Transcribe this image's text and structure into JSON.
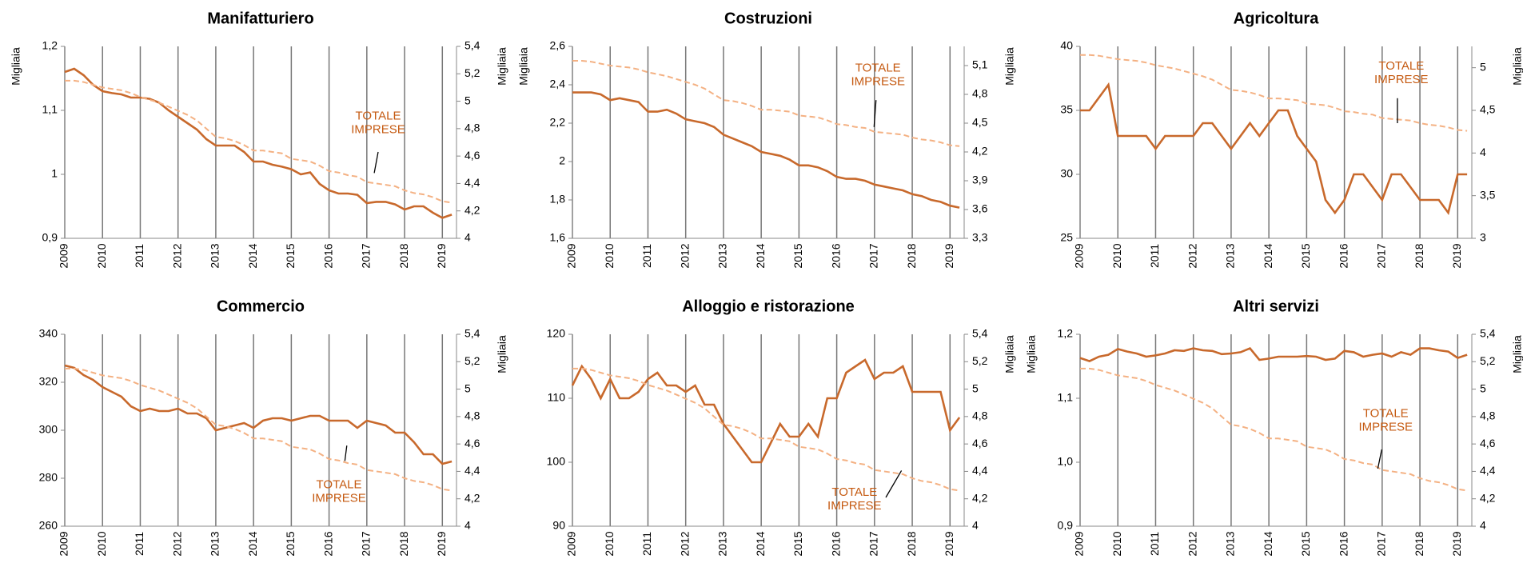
{
  "chart_data": [
    {
      "type": "line",
      "title": "Manifatturiero",
      "y_label": "Migliaia",
      "y2_label": "Migliaia",
      "categories": [
        "2009",
        null,
        null,
        null,
        "2010",
        null,
        null,
        null,
        "2011",
        null,
        null,
        null,
        "2012",
        null,
        null,
        null,
        "2013",
        null,
        null,
        null,
        "2014",
        null,
        null,
        null,
        "2015",
        null,
        null,
        null,
        "2016",
        null,
        null,
        null,
        "2017",
        null,
        null,
        null,
        "2018",
        null,
        null,
        null,
        "2019",
        null
      ],
      "ylim": [
        0.9,
        1.2
      ],
      "yticks": [
        {
          "value": 0.9,
          "label": "0,9"
        },
        1,
        {
          "value": 1.1,
          "label": "1,1"
        },
        {
          "value": 1.2,
          "label": "1,2"
        }
      ],
      "y2lim": [
        4,
        5.4
      ],
      "y2ticks": [
        4,
        {
          "value": 4.2,
          "label": "4,2"
        },
        {
          "value": 4.4,
          "label": "4,4"
        },
        {
          "value": 4.6,
          "label": "4,6"
        },
        {
          "value": 4.8,
          "label": "4,8"
        },
        5,
        {
          "value": 5.2,
          "label": "5,2"
        },
        {
          "value": 5.4,
          "label": "5,4"
        }
      ],
      "annotation": [
        "TOTALE",
        "IMPRESE"
      ],
      "series": [
        {
          "color": "#c8692c",
          "axis": "y",
          "values": [
            1.16,
            1.165,
            1.155,
            1.14,
            1.13,
            1.127,
            1.125,
            1.12,
            1.12,
            1.118,
            1.112,
            1.1,
            1.09,
            1.08,
            1.07,
            1.055,
            1.045,
            1.045,
            1.045,
            1.035,
            1.02,
            1.02,
            1.015,
            1.012,
            1.008,
            1.0,
            1.003,
            0.985,
            0.975,
            0.97,
            0.97,
            0.968,
            0.955,
            0.957,
            0.957,
            0.953,
            0.945,
            0.95,
            0.95,
            0.94,
            0.932,
            0.937
          ]
        },
        {
          "color": "#f4b183",
          "axis": "y2",
          "dashed": true,
          "values": [
            5.15,
            5.15,
            5.14,
            5.12,
            5.1,
            5.09,
            5.08,
            5.06,
            5.03,
            5.01,
            4.99,
            4.96,
            4.93,
            4.9,
            4.86,
            4.8,
            4.74,
            4.73,
            4.71,
            4.68,
            4.64,
            4.64,
            4.63,
            4.62,
            4.58,
            4.57,
            4.56,
            4.53,
            4.49,
            4.48,
            4.46,
            4.45,
            4.41,
            4.4,
            4.39,
            4.38,
            4.35,
            4.33,
            4.32,
            4.3,
            4.27,
            4.26
          ]
        }
      ]
    },
    {
      "type": "line",
      "title": "Costruzioni",
      "y_label": "Migliaia",
      "y2_label": "Migliaia",
      "categories": [
        "2009",
        null,
        null,
        null,
        "2010",
        null,
        null,
        null,
        "2011",
        null,
        null,
        null,
        "2012",
        null,
        null,
        null,
        "2013",
        null,
        null,
        null,
        "2014",
        null,
        null,
        null,
        "2015",
        null,
        null,
        null,
        "2016",
        null,
        null,
        null,
        "2017",
        null,
        null,
        null,
        "2018",
        null,
        null,
        null,
        "2019",
        null
      ],
      "ylim": [
        1.6,
        2.6
      ],
      "yticks": [
        {
          "value": 1.6,
          "label": "1,6"
        },
        {
          "value": 1.8,
          "label": "1,8"
        },
        2,
        {
          "value": 2.2,
          "label": "2,2"
        },
        {
          "value": 2.4,
          "label": "2,4"
        },
        {
          "value": 2.6,
          "label": "2,6"
        }
      ],
      "y2lim": [
        3.3,
        5.3
      ],
      "y2ticks": [
        {
          "value": 3.3,
          "label": "3,3"
        },
        {
          "value": 3.6,
          "label": "3,6"
        },
        {
          "value": 3.9,
          "label": "3,9"
        },
        {
          "value": 4.2,
          "label": "4,2"
        },
        {
          "value": 4.5,
          "label": "4,5"
        },
        {
          "value": 4.8,
          "label": "4,8"
        },
        {
          "value": 5.1,
          "label": "5,1"
        }
      ],
      "annotation": [
        "TOTALE",
        "IMPRESE"
      ],
      "series": [
        {
          "color": "#c8692c",
          "axis": "y",
          "values": [
            2.36,
            2.36,
            2.36,
            2.35,
            2.32,
            2.33,
            2.32,
            2.31,
            2.26,
            2.26,
            2.27,
            2.25,
            2.22,
            2.21,
            2.2,
            2.18,
            2.14,
            2.12,
            2.1,
            2.08,
            2.05,
            2.04,
            2.03,
            2.01,
            1.98,
            1.98,
            1.97,
            1.95,
            1.92,
            1.91,
            1.91,
            1.9,
            1.88,
            1.87,
            1.86,
            1.85,
            1.83,
            1.82,
            1.8,
            1.79,
            1.77,
            1.76
          ]
        },
        {
          "color": "#f4b183",
          "axis": "y2",
          "dashed": true,
          "values": [
            5.15,
            5.15,
            5.14,
            5.12,
            5.1,
            5.09,
            5.08,
            5.06,
            5.03,
            5.01,
            4.99,
            4.96,
            4.93,
            4.9,
            4.86,
            4.8,
            4.74,
            4.73,
            4.71,
            4.68,
            4.64,
            4.64,
            4.63,
            4.62,
            4.58,
            4.57,
            4.56,
            4.53,
            4.49,
            4.48,
            4.46,
            4.45,
            4.41,
            4.4,
            4.39,
            4.38,
            4.35,
            4.33,
            4.32,
            4.3,
            4.27,
            4.26
          ]
        }
      ]
    },
    {
      "type": "line",
      "title": "Agricoltura",
      "y2_label": "Migliaia",
      "categories": [
        "2009",
        null,
        null,
        null,
        "2010",
        null,
        null,
        null,
        "2011",
        null,
        null,
        null,
        "2012",
        null,
        null,
        null,
        "2013",
        null,
        null,
        null,
        "2014",
        null,
        null,
        null,
        "2015",
        null,
        null,
        null,
        "2016",
        null,
        null,
        null,
        "2017",
        null,
        null,
        null,
        "2018",
        null,
        null,
        null,
        "2019",
        null
      ],
      "ylim": [
        25,
        40
      ],
      "yticks": [
        25,
        30,
        35,
        40
      ],
      "y2lim": [
        3,
        5.25
      ],
      "y2ticks": [
        3,
        {
          "value": 3.5,
          "label": "3,5"
        },
        4,
        {
          "value": 4.5,
          "label": "4,5"
        },
        5
      ],
      "annotation": [
        "TOTALE",
        "IMPRESE"
      ],
      "series": [
        {
          "color": "#c8692c",
          "axis": "y",
          "values": [
            35,
            35,
            36,
            37,
            33,
            33,
            33,
            33,
            32,
            33,
            33,
            33,
            33,
            34,
            34,
            33,
            32,
            33,
            34,
            33,
            34,
            35,
            35,
            33,
            32,
            31,
            28,
            27,
            28,
            30,
            30,
            29,
            28,
            30,
            30,
            29,
            28,
            28,
            28,
            27,
            30,
            30
          ]
        },
        {
          "color": "#f4b183",
          "axis": "y2",
          "dashed": true,
          "values": [
            5.15,
            5.15,
            5.14,
            5.12,
            5.1,
            5.09,
            5.08,
            5.06,
            5.03,
            5.01,
            4.99,
            4.96,
            4.93,
            4.9,
            4.86,
            4.8,
            4.74,
            4.73,
            4.71,
            4.68,
            4.64,
            4.64,
            4.63,
            4.62,
            4.58,
            4.57,
            4.56,
            4.53,
            4.49,
            4.48,
            4.46,
            4.45,
            4.41,
            4.4,
            4.39,
            4.38,
            4.35,
            4.33,
            4.32,
            4.3,
            4.27,
            4.26
          ]
        }
      ]
    },
    {
      "type": "line",
      "title": "Commercio",
      "y2_label": "Migliaia",
      "categories": [
        "2009",
        null,
        null,
        null,
        "2010",
        null,
        null,
        null,
        "2011",
        null,
        null,
        null,
        "2012",
        null,
        null,
        null,
        "2013",
        null,
        null,
        null,
        "2014",
        null,
        null,
        null,
        "2015",
        null,
        null,
        null,
        "2016",
        null,
        null,
        null,
        "2017",
        null,
        null,
        null,
        "2018",
        null,
        null,
        null,
        "2019",
        null
      ],
      "ylim": [
        260,
        340
      ],
      "yticks": [
        260,
        280,
        300,
        320,
        340
      ],
      "y2lim": [
        4,
        5.4
      ],
      "y2ticks": [
        4,
        {
          "value": 4.2,
          "label": "4,2"
        },
        {
          "value": 4.4,
          "label": "4,4"
        },
        {
          "value": 4.6,
          "label": "4,6"
        },
        {
          "value": 4.8,
          "label": "4,8"
        },
        5,
        {
          "value": 5.2,
          "label": "5,2"
        },
        {
          "value": 5.4,
          "label": "5,4"
        }
      ],
      "annotation": [
        "TOTALE",
        "IMPRESE"
      ],
      "series": [
        {
          "color": "#c8692c",
          "axis": "y",
          "values": [
            327,
            326,
            323,
            321,
            318,
            316,
            314,
            310,
            308,
            309,
            308,
            308,
            309,
            307,
            307,
            305,
            300,
            301,
            302,
            303,
            301,
            304,
            305,
            305,
            304,
            305,
            306,
            306,
            304,
            304,
            304,
            301,
            304,
            303,
            302,
            299,
            299,
            295,
            290,
            290,
            286,
            287
          ]
        },
        {
          "color": "#f4b183",
          "axis": "y2",
          "dashed": true,
          "values": [
            5.15,
            5.15,
            5.14,
            5.12,
            5.1,
            5.09,
            5.08,
            5.06,
            5.03,
            5.01,
            4.99,
            4.96,
            4.93,
            4.9,
            4.86,
            4.8,
            4.74,
            4.73,
            4.71,
            4.68,
            4.64,
            4.64,
            4.63,
            4.62,
            4.58,
            4.57,
            4.56,
            4.53,
            4.49,
            4.48,
            4.46,
            4.45,
            4.41,
            4.4,
            4.39,
            4.38,
            4.35,
            4.33,
            4.32,
            4.3,
            4.27,
            4.26
          ]
        }
      ]
    },
    {
      "type": "line",
      "title": "Alloggio e ristorazione",
      "y2_label": "Migliaia",
      "categories": [
        "2009",
        null,
        null,
        null,
        "2010",
        null,
        null,
        null,
        "2011",
        null,
        null,
        null,
        "2012",
        null,
        null,
        null,
        "2013",
        null,
        null,
        null,
        "2014",
        null,
        null,
        null,
        "2015",
        null,
        null,
        null,
        "2016",
        null,
        null,
        null,
        "2017",
        null,
        null,
        null,
        "2018",
        null,
        null,
        null,
        "2019",
        null
      ],
      "ylim": [
        90,
        120
      ],
      "yticks": [
        90,
        100,
        110,
        120
      ],
      "y2lim": [
        4,
        5.4
      ],
      "y2ticks": [
        4,
        {
          "value": 4.2,
          "label": "4,2"
        },
        {
          "value": 4.4,
          "label": "4,4"
        },
        {
          "value": 4.6,
          "label": "4,6"
        },
        {
          "value": 4.8,
          "label": "4,8"
        },
        5,
        {
          "value": 5.2,
          "label": "5,2"
        },
        {
          "value": 5.4,
          "label": "5,4"
        }
      ],
      "annotation": [
        "TOTALE",
        "IMPRESE"
      ],
      "series": [
        {
          "color": "#c8692c",
          "axis": "y",
          "values": [
            112,
            115,
            113,
            110,
            113,
            110,
            110,
            111,
            113,
            114,
            112,
            112,
            111,
            112,
            109,
            109,
            106,
            104,
            102,
            100,
            100,
            103,
            106,
            104,
            104,
            106,
            104,
            110,
            110,
            114,
            115,
            116,
            113,
            114,
            114,
            115,
            111,
            111,
            111,
            111,
            105,
            107
          ]
        },
        {
          "color": "#f4b183",
          "axis": "y2",
          "dashed": true,
          "values": [
            5.15,
            5.15,
            5.14,
            5.12,
            5.1,
            5.09,
            5.08,
            5.06,
            5.03,
            5.01,
            4.99,
            4.96,
            4.93,
            4.9,
            4.86,
            4.8,
            4.74,
            4.73,
            4.71,
            4.68,
            4.64,
            4.64,
            4.63,
            4.62,
            4.58,
            4.57,
            4.56,
            4.53,
            4.49,
            4.48,
            4.46,
            4.45,
            4.41,
            4.4,
            4.39,
            4.38,
            4.35,
            4.33,
            4.32,
            4.3,
            4.27,
            4.26
          ]
        }
      ]
    },
    {
      "type": "line",
      "title": "Altri servizi",
      "y_label": "Migliaia",
      "y2_label": "Migliaia",
      "categories": [
        "2009",
        null,
        null,
        null,
        "2010",
        null,
        null,
        null,
        "2011",
        null,
        null,
        null,
        "2012",
        null,
        null,
        null,
        "2013",
        null,
        null,
        null,
        "2014",
        null,
        null,
        null,
        "2015",
        null,
        null,
        null,
        "2016",
        null,
        null,
        null,
        "2017",
        null,
        null,
        null,
        "2018",
        null,
        null,
        null,
        "2019",
        null
      ],
      "ylim": [
        0.9,
        1.2
      ],
      "yticks": [
        {
          "value": 0.9,
          "label": "0,9"
        },
        {
          "value": 1.0,
          "label": "1,0"
        },
        {
          "value": 1.1,
          "label": "1,1"
        },
        {
          "value": 1.2,
          "label": "1,2"
        }
      ],
      "y2lim": [
        4,
        5.4
      ],
      "y2ticks": [
        4,
        {
          "value": 4.2,
          "label": "4,2"
        },
        {
          "value": 4.4,
          "label": "4,4"
        },
        {
          "value": 4.6,
          "label": "4,6"
        },
        {
          "value": 4.8,
          "label": "4,8"
        },
        5,
        {
          "value": 5.2,
          "label": "5,2"
        },
        {
          "value": 5.4,
          "label": "5,4"
        }
      ],
      "annotation": [
        "TOTALE",
        "IMPRESE"
      ],
      "series": [
        {
          "color": "#c8692c",
          "axis": "y",
          "values": [
            1.163,
            1.158,
            1.165,
            1.168,
            1.177,
            1.173,
            1.17,
            1.165,
            1.167,
            1.17,
            1.175,
            1.174,
            1.178,
            1.175,
            1.174,
            1.169,
            1.17,
            1.172,
            1.178,
            1.16,
            1.162,
            1.165,
            1.165,
            1.165,
            1.166,
            1.165,
            1.16,
            1.162,
            1.174,
            1.172,
            1.165,
            1.168,
            1.17,
            1.165,
            1.172,
            1.168,
            1.178,
            1.178,
            1.175,
            1.173,
            1.163,
            1.168
          ]
        },
        {
          "color": "#f4b183",
          "axis": "y2",
          "dashed": true,
          "values": [
            5.15,
            5.15,
            5.14,
            5.12,
            5.1,
            5.09,
            5.08,
            5.06,
            5.03,
            5.01,
            4.99,
            4.96,
            4.93,
            4.9,
            4.86,
            4.8,
            4.74,
            4.73,
            4.71,
            4.68,
            4.64,
            4.64,
            4.63,
            4.62,
            4.58,
            4.57,
            4.56,
            4.53,
            4.49,
            4.48,
            4.46,
            4.45,
            4.41,
            4.4,
            4.39,
            4.38,
            4.35,
            4.33,
            4.32,
            4.3,
            4.27,
            4.26
          ]
        }
      ]
    }
  ]
}
